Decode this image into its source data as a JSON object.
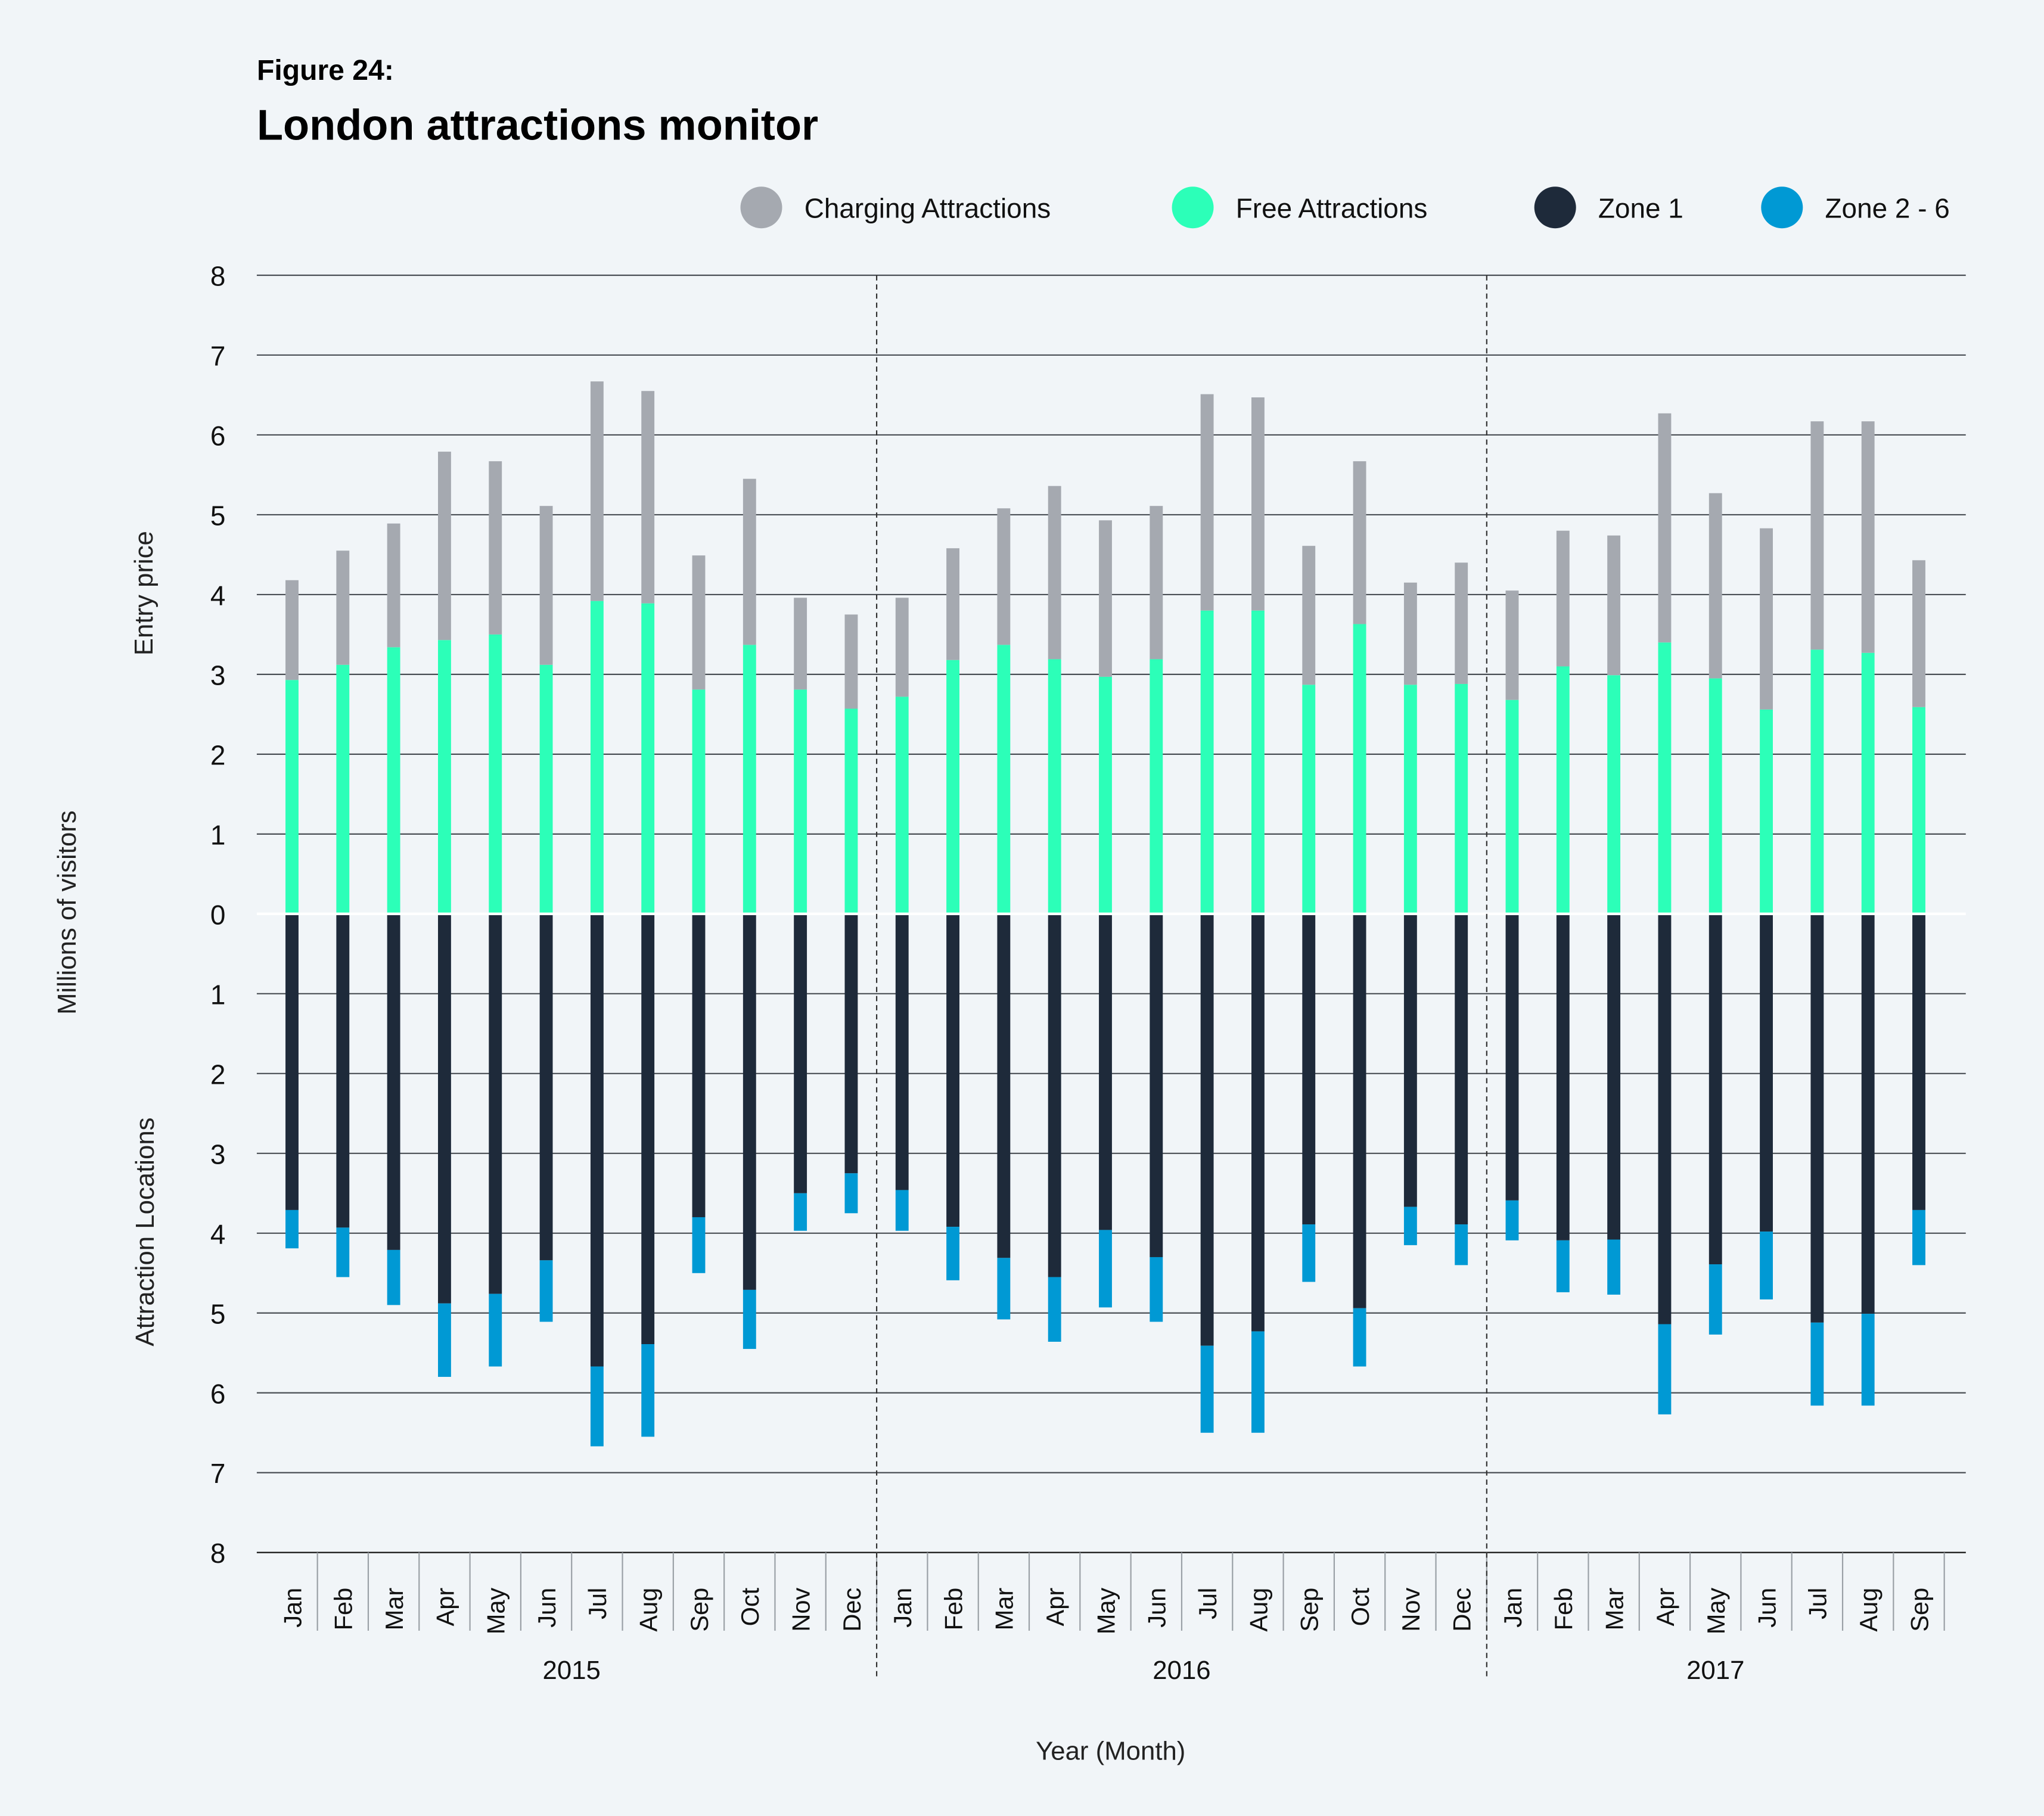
{
  "figure_label": "Figure 24:",
  "title": "London attractions monitor",
  "chart_data": {
    "type": "bar",
    "subtype": "diverging-stacked-bar",
    "title": "London attractions monitor",
    "figure_label": "Figure 24:",
    "xlabel": "Year (Month)",
    "ylabel": "Millions of visitors",
    "ylabel_upper": "Entry price",
    "ylabel_lower": "Attraction Locations",
    "ylim_upper": [
      0,
      8
    ],
    "ylim_lower": [
      0,
      8
    ],
    "yticks_upper": [
      "8",
      "7",
      "6",
      "5",
      "4",
      "3",
      "2",
      "1",
      "0"
    ],
    "yticks_lower": [
      "1",
      "2",
      "3",
      "4",
      "5",
      "6",
      "7",
      "8"
    ],
    "grid": true,
    "legend_position": "top-right",
    "groups": [
      {
        "year": "2015",
        "months": [
          "Jan",
          "Feb",
          "Mar",
          "Apr",
          "May",
          "Jun",
          "Jul",
          "Aug",
          "Sep",
          "Oct",
          "Nov",
          "Dec"
        ]
      },
      {
        "year": "2016",
        "months": [
          "Jan",
          "Feb",
          "Mar",
          "Apr",
          "May",
          "Jun",
          "Jul",
          "Aug",
          "Sep",
          "Oct",
          "Nov",
          "Dec"
        ]
      },
      {
        "year": "2017",
        "months": [
          "Jan",
          "Feb",
          "Mar",
          "Apr",
          "May",
          "Jun",
          "Jul",
          "Aug",
          "Sep"
        ]
      }
    ],
    "series": [
      {
        "name": "Charging Attractions",
        "color": "#a5a9b0",
        "side": "upper",
        "values": [
          1.25,
          1.43,
          1.55,
          2.36,
          2.17,
          1.99,
          2.75,
          2.66,
          1.68,
          2.08,
          1.15,
          1.18,
          1.24,
          1.4,
          1.71,
          2.17,
          1.96,
          1.92,
          2.71,
          2.67,
          1.74,
          2.04,
          1.28,
          1.52,
          1.37,
          1.7,
          1.75,
          2.87,
          2.32,
          2.27,
          2.86,
          2.9,
          1.84
        ]
      },
      {
        "name": "Free Attractions",
        "color": "#2cffb8",
        "side": "upper",
        "values": [
          2.93,
          3.12,
          3.34,
          3.43,
          3.5,
          3.12,
          3.92,
          3.89,
          2.81,
          3.37,
          2.81,
          2.57,
          2.72,
          3.18,
          3.37,
          3.19,
          2.97,
          3.19,
          3.8,
          3.8,
          2.87,
          3.63,
          2.87,
          2.88,
          2.68,
          3.1,
          2.99,
          3.4,
          2.95,
          2.56,
          3.31,
          3.27,
          2.59
        ]
      },
      {
        "name": "Zone 1",
        "color": "#1e2a3a",
        "side": "lower",
        "values": [
          3.71,
          3.93,
          4.21,
          4.88,
          4.76,
          4.34,
          5.67,
          5.39,
          3.8,
          4.71,
          3.5,
          3.25,
          3.46,
          3.92,
          4.31,
          4.55,
          3.96,
          4.3,
          5.41,
          5.23,
          3.89,
          4.94,
          3.67,
          3.89,
          3.59,
          4.09,
          4.08,
          5.14,
          4.39,
          3.98,
          5.12,
          5.01,
          3.71
        ]
      },
      {
        "name": "Zone 2 - 6",
        "color": "#0099d4",
        "side": "lower",
        "values": [
          0.48,
          0.62,
          0.69,
          0.92,
          0.91,
          0.77,
          1.0,
          1.16,
          0.7,
          0.74,
          0.47,
          0.5,
          0.51,
          0.67,
          0.77,
          0.81,
          0.97,
          0.81,
          1.09,
          1.27,
          0.72,
          0.73,
          0.48,
          0.51,
          0.5,
          0.65,
          0.69,
          1.13,
          0.88,
          0.85,
          1.04,
          1.15,
          0.69
        ]
      }
    ]
  }
}
